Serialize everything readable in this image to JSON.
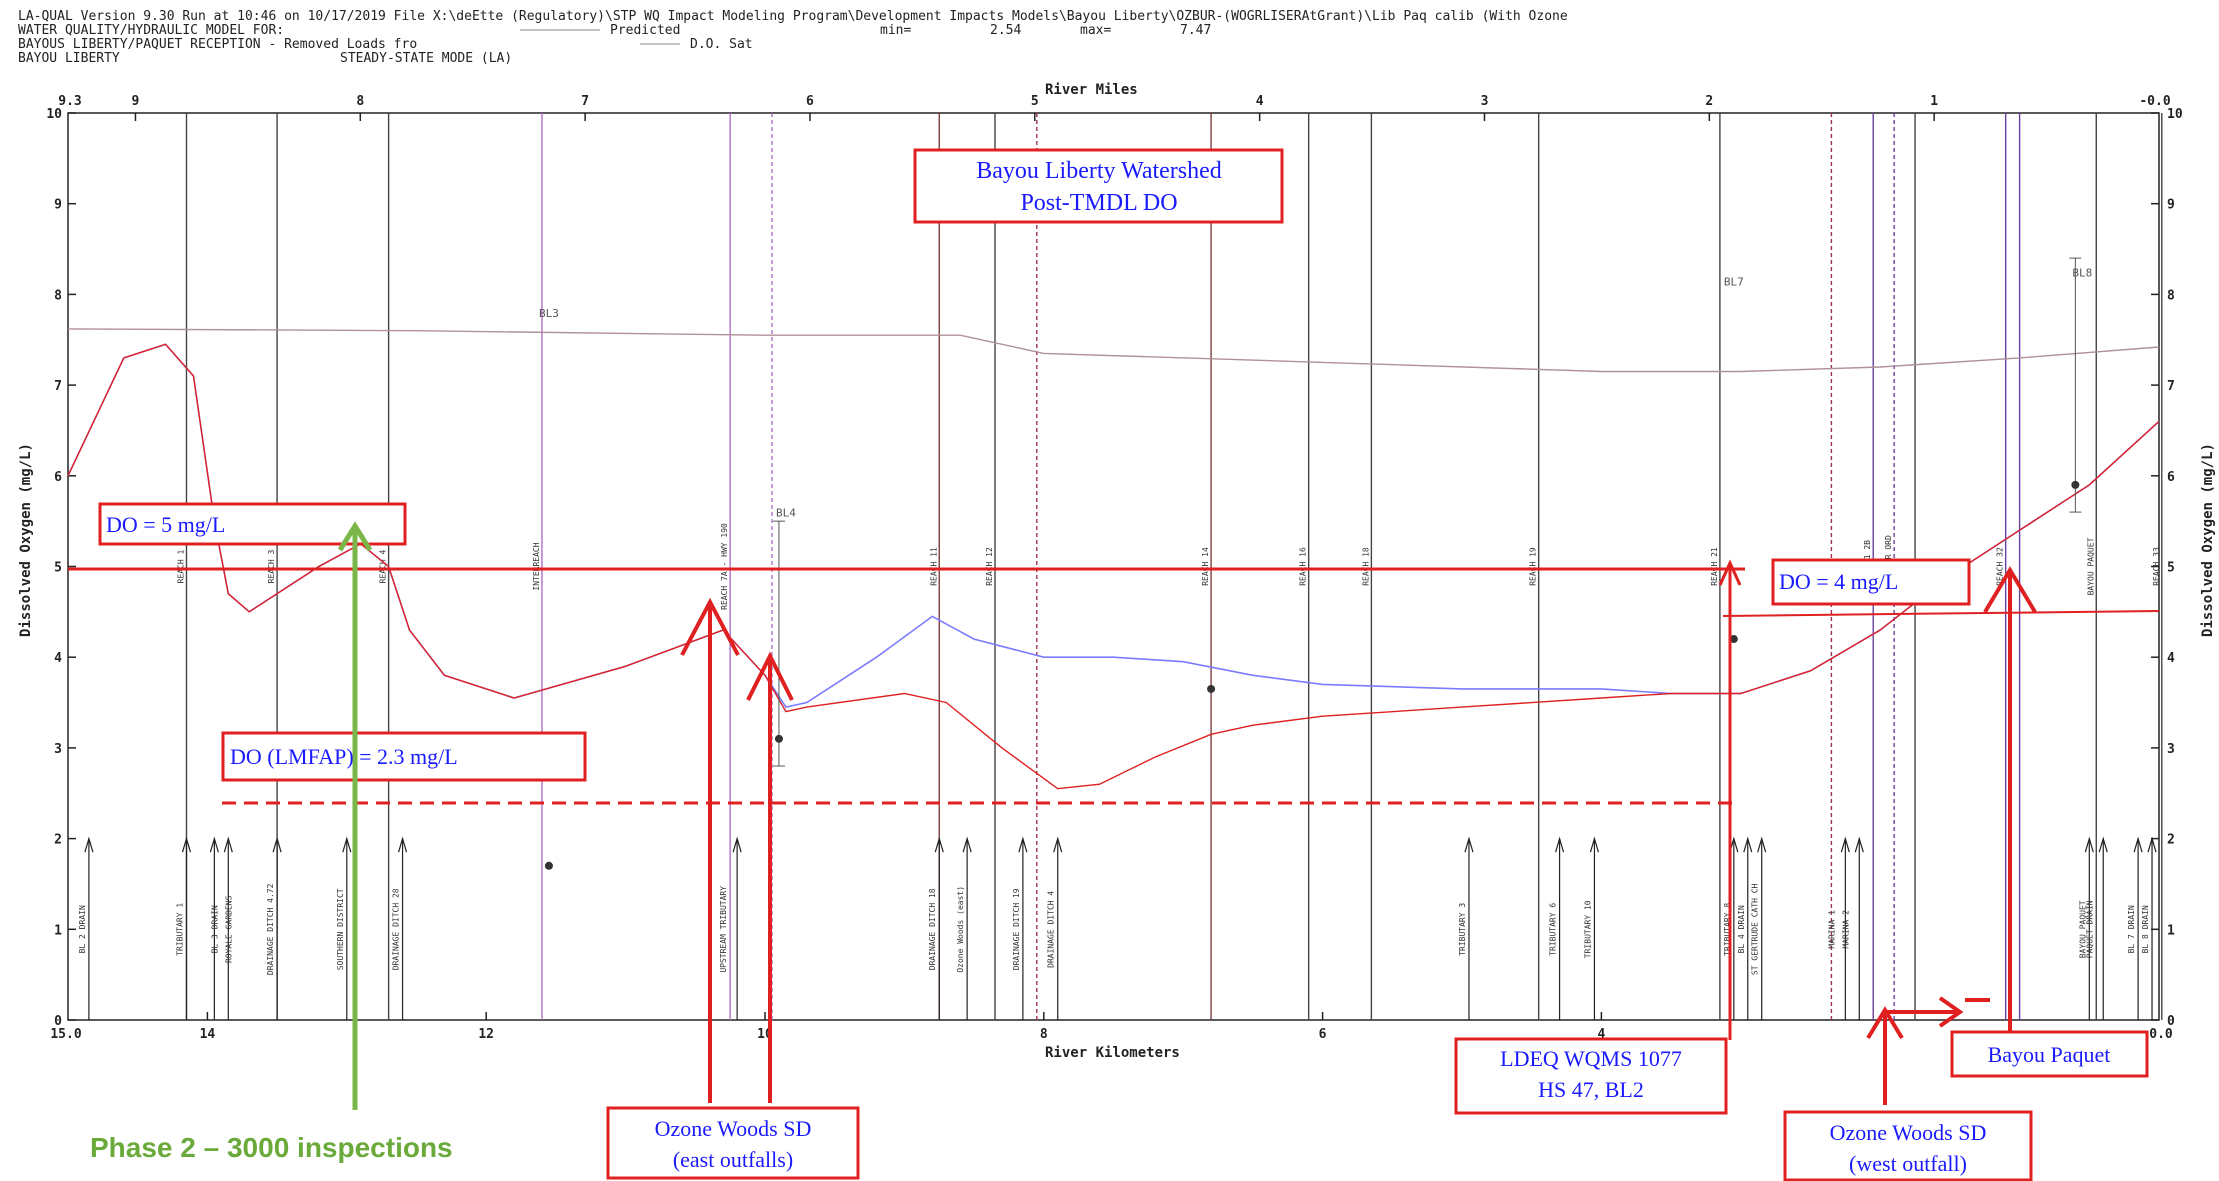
{
  "header": {
    "line1": "LA-QUAL Version 9.30  Run at 10:46 on 10/17/2019  File X:\\deEtte (Regulatory)\\STP WQ Impact Modeling Program\\Development Impacts Models\\Bayou Liberty\\OZBUR-(WOGRLISERAtGrant)\\Lib Paq calib (With Ozone",
    "line2a": "WATER QUALITY/HYDRAULIC MODEL FOR:",
    "line2b": "Predicted",
    "line2c": "min=",
    "line2d": "2.54",
    "line2e": "max=",
    "line2f": "7.47",
    "line3a": "BAYOUS LIBERTY/PAQUET RECEPTION - Removed Loads fro",
    "line3b": "D.O. Sat",
    "line4a": "BAYOU LIBERTY",
    "line4b": "STEADY-STATE MODE (LA)"
  },
  "colors": {
    "predicted_blue": "#7b7bff",
    "red_line": "#e02020",
    "sat_line": "#b0909a",
    "magenta_line": "#b070c8",
    "green_arrow": "#7ab648"
  },
  "chart_data": {
    "type": "line",
    "title": "Bayou Liberty Watershed Post-TMDL DO",
    "xlabel": "River Kilometers",
    "x2label": "River Miles",
    "ylabel": "Dissolved Oxygen (mg/L)",
    "xlim": [
      15.0,
      0.0
    ],
    "ylim": [
      0,
      10
    ],
    "x_ticks": [
      14,
      12,
      10,
      8,
      6,
      4
    ],
    "x_tick_labels": [
      "14",
      "12",
      "10",
      "8",
      "6",
      "4"
    ],
    "x_end_labels": [
      "15.0",
      "0.0"
    ],
    "mile_ticks": [
      9,
      8,
      7,
      6,
      5,
      4,
      3,
      2,
      1
    ],
    "mile_end_labels": [
      "9.3",
      "-0.0"
    ],
    "y_ticks": [
      0,
      1,
      2,
      3,
      4,
      5,
      6,
      7,
      8,
      9,
      10
    ],
    "series": [
      {
        "name": "Predicted",
        "x": [
          15.0,
          14.6,
          14.3,
          14.1,
          13.95,
          13.85,
          13.7,
          13.2,
          12.9,
          12.7,
          12.55,
          12.3,
          11.8,
          11.0,
          10.3,
          10.0,
          9.85,
          9.7,
          9.2,
          8.8,
          8.5,
          8.0,
          7.5,
          7.0,
          6.5,
          6.0,
          5.0,
          4.0,
          3.5,
          3.0,
          2.5,
          2.0,
          1.5,
          1.0,
          0.5,
          0.0
        ],
        "y": [
          6.0,
          7.3,
          7.45,
          7.1,
          5.5,
          4.7,
          4.5,
          5.0,
          5.25,
          5.0,
          4.3,
          3.8,
          3.55,
          3.9,
          4.3,
          3.8,
          3.45,
          3.5,
          4.0,
          4.45,
          4.2,
          4.0,
          4.0,
          3.95,
          3.8,
          3.7,
          3.65,
          3.65,
          3.6,
          3.6,
          3.85,
          4.3,
          4.9,
          5.4,
          5.9,
          6.6
        ]
      },
      {
        "name": "Removed Loads",
        "x": [
          15.0,
          14.6,
          14.3,
          14.1,
          13.95,
          13.85,
          13.7,
          13.2,
          12.9,
          12.7,
          12.55,
          12.3,
          11.8,
          11.0,
          10.3,
          10.0,
          9.85,
          9.7,
          9.0,
          8.7,
          8.3,
          7.9,
          7.6,
          7.2,
          6.8,
          6.5,
          6.0,
          5.0,
          4.0,
          3.5,
          3.0,
          2.5,
          2.0,
          1.5,
          1.0,
          0.5,
          0.0
        ],
        "y": [
          6.0,
          7.3,
          7.45,
          7.1,
          5.5,
          4.7,
          4.5,
          5.0,
          5.25,
          5.0,
          4.3,
          3.8,
          3.55,
          3.9,
          4.3,
          3.8,
          3.4,
          3.45,
          3.6,
          3.5,
          3.0,
          2.55,
          2.6,
          2.9,
          3.15,
          3.25,
          3.35,
          3.45,
          3.55,
          3.6,
          3.6,
          3.85,
          4.3,
          4.9,
          5.4,
          5.9,
          6.6
        ]
      },
      {
        "name": "D.O. Sat",
        "x": [
          15.0,
          12.5,
          10.0,
          8.6,
          8.0,
          6.0,
          4.0,
          3.0,
          2.0,
          1.0,
          0.0
        ],
        "y": [
          7.62,
          7.6,
          7.55,
          7.55,
          7.35,
          7.25,
          7.15,
          7.15,
          7.2,
          7.3,
          7.42
        ]
      }
    ],
    "observations": [
      {
        "x": 11.55,
        "y": 1.7
      },
      {
        "x": 9.9,
        "y": 3.1,
        "low": 2.8,
        "high": 5.5
      },
      {
        "x": 6.8,
        "y": 3.65
      },
      {
        "x": 3.05,
        "y": 4.2
      },
      {
        "x": 0.6,
        "y": 5.9,
        "low": 5.6,
        "high": 8.4
      }
    ],
    "station_labels": [
      {
        "x": 11.55,
        "y": 7.75,
        "text": "BL3"
      },
      {
        "x": 9.85,
        "y": 5.55,
        "text": "BL4"
      },
      {
        "x": 3.05,
        "y": 8.1,
        "text": "BL7"
      },
      {
        "x": 0.55,
        "y": 8.2,
        "text": "BL8"
      }
    ],
    "reach_lines": [
      {
        "x": 14.15,
        "label": "REACH 1",
        "c": "#444"
      },
      {
        "x": 13.5,
        "label": "REACH 3",
        "c": "#444"
      },
      {
        "x": 12.7,
        "label": "REACH 4",
        "c": "#444"
      },
      {
        "x": 11.6,
        "label": "INTERREACH",
        "c": "#b070c8"
      },
      {
        "x": 10.25,
        "label": "REACH 7A - HWY 190",
        "c": "#b070c8"
      },
      {
        "x": 9.95,
        "label": "",
        "c": "#b070c8",
        "dash": true
      },
      {
        "x": 8.75,
        "label": "REACH 11",
        "c": "#7a4040"
      },
      {
        "x": 8.35,
        "label": "REACH 12",
        "c": "#444"
      },
      {
        "x": 8.05,
        "label": "",
        "c": "#a03050",
        "dash": true
      },
      {
        "x": 6.8,
        "label": "REACH 14",
        "c": "#7a4040"
      },
      {
        "x": 6.1,
        "label": "REACH 16",
        "c": "#444"
      },
      {
        "x": 5.65,
        "label": "REACH 18",
        "c": "#444"
      },
      {
        "x": 4.45,
        "label": "REACH 19",
        "c": "#444"
      },
      {
        "x": 3.15,
        "label": "REACH 21",
        "c": "#444"
      },
      {
        "x": 2.35,
        "label": "",
        "c": "#a03050",
        "dash": true
      },
      {
        "x": 2.05,
        "label": "REACH 21 2B",
        "c": "#6a40a0"
      },
      {
        "x": 1.9,
        "label": "BACKWATER ORD",
        "c": "#6a40a0",
        "dash": true
      },
      {
        "x": 1.75,
        "label": "",
        "c": "#444"
      },
      {
        "x": 1.1,
        "label": "REACH 32",
        "c": "#6a40a0"
      },
      {
        "x": 1.0,
        "label": "",
        "c": "#6a40a0"
      },
      {
        "x": 0.45,
        "label": "BAYOU PAQUET",
        "c": "#444"
      },
      {
        "x": -0.02,
        "label": "REACH 33",
        "c": "#444"
      }
    ],
    "bottom_labels": [
      {
        "x": 14.85,
        "text": "BL 2 DRAIN"
      },
      {
        "x": 14.15,
        "text": "TRIBUTARY 1"
      },
      {
        "x": 13.9,
        "text": "BL 3 DRAIN"
      },
      {
        "x": 13.8,
        "text": "ROYALE GARDENS"
      },
      {
        "x": 13.5,
        "text": "DRAINAGE DITCH 4.72"
      },
      {
        "x": 13.0,
        "text": "SOUTHERN DISTRICT"
      },
      {
        "x": 12.6,
        "text": "DRAINAGE DITCH 28"
      },
      {
        "x": 10.25,
        "text": "UPSTREAM TRIBUTARY"
      },
      {
        "x": 8.75,
        "text": "DRAINAGE DITCH 18"
      },
      {
        "x": 8.55,
        "text": "Ozone Woods (east)"
      },
      {
        "x": 8.15,
        "text": "DRAINAGE DITCH 19"
      },
      {
        "x": 7.9,
        "text": "DRAINAGE DITCH 4"
      },
      {
        "x": 4.95,
        "text": "TRIBUTARY 3"
      },
      {
        "x": 4.3,
        "text": "TRIBUTARY 6"
      },
      {
        "x": 4.05,
        "text": "TRIBUTARY 10"
      },
      {
        "x": 3.05,
        "text": "TRIBUTARY 8"
      },
      {
        "x": 2.95,
        "text": "BL 4 DRAIN"
      },
      {
        "x": 2.85,
        "text": "ST GERTRUDE CATH CH"
      },
      {
        "x": 2.3,
        "text": "MARINA 1"
      },
      {
        "x": 2.2,
        "text": "MARINA 2"
      },
      {
        "x": 0.5,
        "text": "BAYOU PAQUET"
      },
      {
        "x": 0.45,
        "text": "PAQUET DRAIN"
      },
      {
        "x": 0.15,
        "text": "BL 7 DRAIN"
      },
      {
        "x": 0.05,
        "text": "BL 8 DRAIN"
      }
    ],
    "bottom_arrows": [
      14.85,
      14.15,
      13.95,
      13.85,
      13.5,
      13.0,
      12.6,
      10.2,
      8.75,
      8.55,
      8.15,
      7.9,
      4.95,
      4.3,
      4.05,
      3.05,
      2.95,
      2.85,
      2.25,
      2.15,
      0.5,
      0.4,
      0.15,
      0.05
    ]
  },
  "annotations": {
    "title_box": {
      "line1": "Bayou Liberty Watershed",
      "line2": "Post-TMDL DO"
    },
    "do5": "DO = 5 mg/L",
    "do4": "DO = 4 mg/L",
    "do_lmfap": "DO (LMFAP) = 2.3 mg/L",
    "ozone_east": {
      "line1": "Ozone Woods SD",
      "line2": "(east outfalls)"
    },
    "ldeq": {
      "line1": "LDEQ WQMS 1077",
      "line2": "HS 47, BL2"
    },
    "ozone_west": {
      "line1": "Ozone Woods SD",
      "line2": "(west outfall)"
    },
    "bayou_paquet": "Bayou Paquet",
    "phase2": "Phase 2 – 3000 inspections"
  }
}
